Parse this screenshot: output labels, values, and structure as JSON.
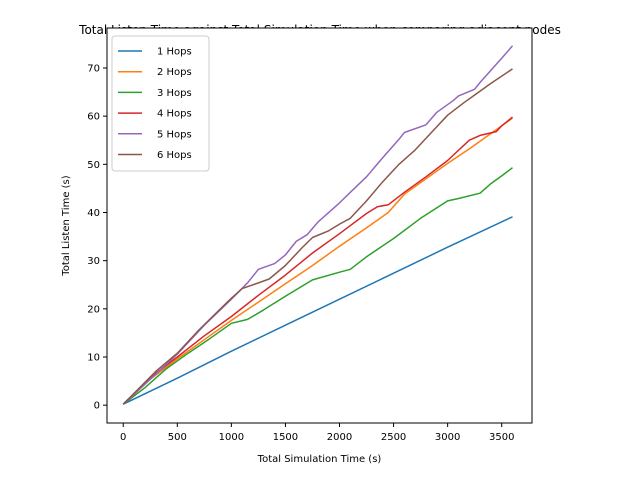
{
  "chart_data": {
    "type": "line",
    "title": "Total Listen Time against Total Simulation Time when comparing adjacent nodes",
    "xlabel": "Total Simulation Time (s)",
    "ylabel": "Total Listen Time (s)",
    "xlim": [
      -150,
      3780
    ],
    "ylim": [
      -3.7,
      78.3
    ],
    "xticks": [
      0,
      500,
      1000,
      1500,
      2000,
      2500,
      3000,
      3500
    ],
    "yticks": [
      0,
      10,
      20,
      30,
      40,
      50,
      60,
      70
    ],
    "grid": false,
    "legend_position": "upper left",
    "series": [
      {
        "name": "1 Hops",
        "color": "#1f77b4",
        "points": [
          [
            0,
            0.2
          ],
          [
            500,
            5.6
          ],
          [
            1000,
            11.2
          ],
          [
            1500,
            16.6
          ],
          [
            2000,
            22.0
          ],
          [
            2500,
            27.4
          ],
          [
            3000,
            32.8
          ],
          [
            3600,
            39.1
          ]
        ]
      },
      {
        "name": "2 Hops",
        "color": "#ff7f0e",
        "points": [
          [
            0,
            0.2
          ],
          [
            250,
            5.4
          ],
          [
            500,
            9.6
          ],
          [
            750,
            13.6
          ],
          [
            1000,
            17.6
          ],
          [
            1250,
            21.4
          ],
          [
            1500,
            25.2
          ],
          [
            1750,
            29.0
          ],
          [
            2000,
            33.0
          ],
          [
            2250,
            36.8
          ],
          [
            2450,
            40.0
          ],
          [
            2600,
            43.8
          ],
          [
            2800,
            47.0
          ],
          [
            3000,
            50.2
          ],
          [
            3200,
            53.2
          ],
          [
            3400,
            56.4
          ],
          [
            3600,
            59.6
          ]
        ]
      },
      {
        "name": "3 Hops",
        "color": "#2ca02c",
        "points": [
          [
            0,
            0.2
          ],
          [
            200,
            3.6
          ],
          [
            400,
            7.6
          ],
          [
            600,
            10.8
          ],
          [
            800,
            13.8
          ],
          [
            1000,
            17.0
          ],
          [
            1150,
            17.8
          ],
          [
            1300,
            19.8
          ],
          [
            1500,
            22.6
          ],
          [
            1750,
            26.0
          ],
          [
            2000,
            27.6
          ],
          [
            2100,
            28.2
          ],
          [
            2250,
            30.8
          ],
          [
            2500,
            34.6
          ],
          [
            2750,
            38.8
          ],
          [
            3000,
            42.4
          ],
          [
            3100,
            42.9
          ],
          [
            3300,
            44.0
          ],
          [
            3400,
            46.0
          ],
          [
            3500,
            47.6
          ],
          [
            3600,
            49.3
          ]
        ]
      },
      {
        "name": "4 Hops",
        "color": "#d62728",
        "points": [
          [
            0,
            0.2
          ],
          [
            300,
            6.6
          ],
          [
            500,
            10.0
          ],
          [
            750,
            14.4
          ],
          [
            1000,
            18.4
          ],
          [
            1250,
            22.8
          ],
          [
            1500,
            27.0
          ],
          [
            1750,
            31.6
          ],
          [
            2000,
            35.6
          ],
          [
            2250,
            39.8
          ],
          [
            2350,
            41.2
          ],
          [
            2450,
            41.6
          ],
          [
            2600,
            44.2
          ],
          [
            2800,
            47.4
          ],
          [
            3000,
            50.8
          ],
          [
            3200,
            55.0
          ],
          [
            3300,
            56.0
          ],
          [
            3450,
            56.8
          ],
          [
            3500,
            58.0
          ],
          [
            3600,
            59.8
          ]
        ]
      },
      {
        "name": "5 Hops",
        "color": "#9467bd",
        "points": [
          [
            0,
            0.2
          ],
          [
            300,
            6.4
          ],
          [
            500,
            10.6
          ],
          [
            750,
            16.6
          ],
          [
            1000,
            22.0
          ],
          [
            1150,
            25.4
          ],
          [
            1250,
            28.2
          ],
          [
            1400,
            29.4
          ],
          [
            1500,
            31.2
          ],
          [
            1600,
            34.0
          ],
          [
            1700,
            35.4
          ],
          [
            1800,
            38.0
          ],
          [
            2000,
            42.0
          ],
          [
            2100,
            44.2
          ],
          [
            2250,
            47.4
          ],
          [
            2400,
            51.4
          ],
          [
            2550,
            55.2
          ],
          [
            2600,
            56.6
          ],
          [
            2800,
            58.2
          ],
          [
            2900,
            60.8
          ],
          [
            3050,
            63.2
          ],
          [
            3100,
            64.2
          ],
          [
            3250,
            65.6
          ],
          [
            3300,
            67.0
          ],
          [
            3500,
            72.0
          ],
          [
            3600,
            74.6
          ]
        ]
      },
      {
        "name": "6 Hops",
        "color": "#8c564b",
        "points": [
          [
            0,
            0.2
          ],
          [
            300,
            7.0
          ],
          [
            500,
            10.8
          ],
          [
            700,
            15.6
          ],
          [
            900,
            20.0
          ],
          [
            1000,
            22.2
          ],
          [
            1100,
            24.2
          ],
          [
            1350,
            26.2
          ],
          [
            1500,
            29.0
          ],
          [
            1650,
            32.6
          ],
          [
            1750,
            34.8
          ],
          [
            1900,
            36.2
          ],
          [
            2000,
            37.6
          ],
          [
            2100,
            38.8
          ],
          [
            2250,
            42.4
          ],
          [
            2400,
            46.4
          ],
          [
            2550,
            50.0
          ],
          [
            2700,
            53.0
          ],
          [
            2850,
            56.6
          ],
          [
            3000,
            60.2
          ],
          [
            3150,
            62.8
          ],
          [
            3250,
            64.4
          ],
          [
            3400,
            66.8
          ],
          [
            3600,
            69.8
          ]
        ]
      }
    ]
  }
}
